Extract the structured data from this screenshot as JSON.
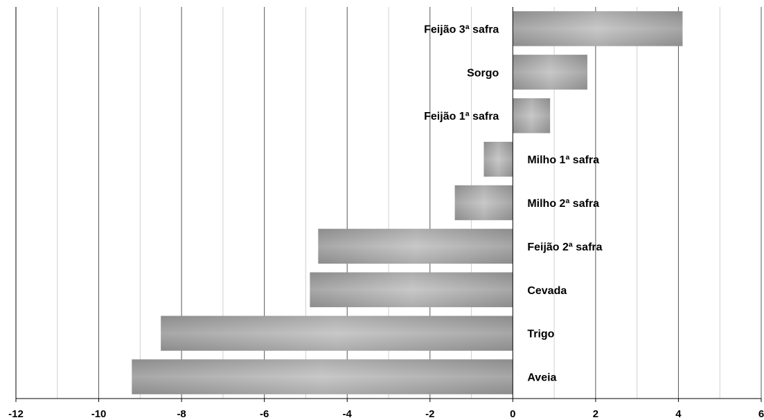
{
  "chart_data": {
    "type": "bar",
    "orientation": "horizontal",
    "title": "",
    "xlabel": "",
    "ylabel": "",
    "xlim": [
      -12,
      6
    ],
    "major_ticks": [
      -12,
      -10,
      -8,
      -6,
      -4,
      -2,
      0,
      2,
      4,
      6
    ],
    "minor_gridlines": true,
    "major_gridlines": true,
    "categories": [
      "Feijão 3ª safra",
      "Sorgo",
      "Feijão 1ª safra",
      "Milho 1ª safra",
      "Milho 2ª safra",
      "Feijão 2ª safra",
      "Cevada",
      "Trigo",
      "Aveia"
    ],
    "values": [
      4.1,
      1.8,
      0.9,
      -0.7,
      -1.4,
      -4.7,
      -4.9,
      -8.5,
      -9.2
    ],
    "colors": {
      "bar_edge": "#8c8c8c",
      "bar_center": "#c8c8c8",
      "major_grid": "#555555",
      "minor_grid": "#cfcfcf",
      "axis": "#000000"
    }
  }
}
